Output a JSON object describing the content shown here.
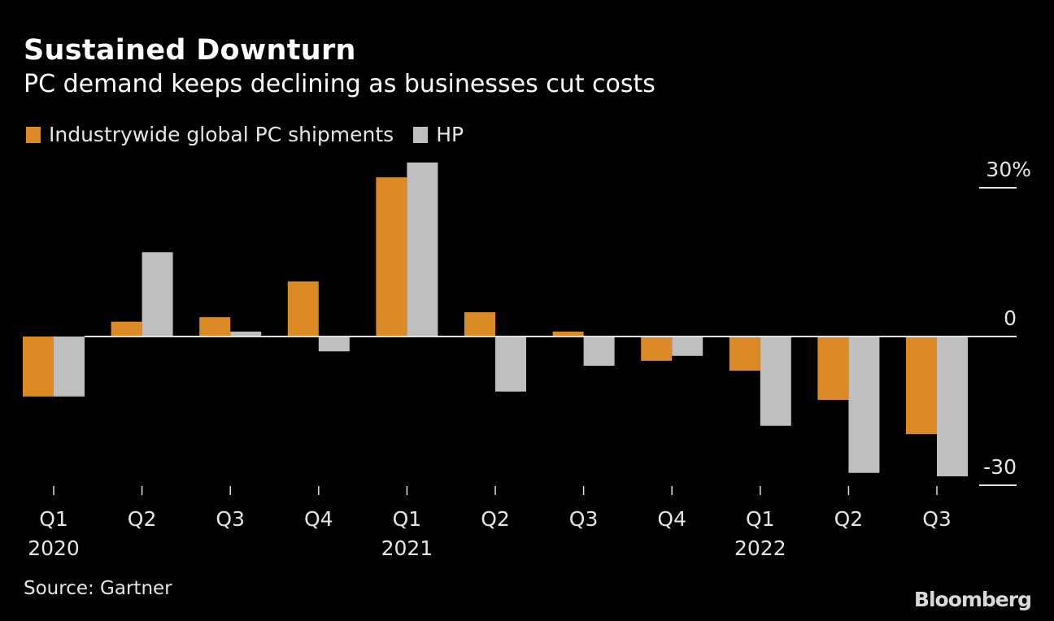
{
  "header": {
    "title": "Sustained Downturn",
    "subtitle": "PC demand keeps declining as businesses cut costs"
  },
  "legend": [
    {
      "label": "Industrywide global PC shipments",
      "color": "#dc8a25"
    },
    {
      "label": "HP",
      "color": "#bfbfbf"
    }
  ],
  "footer": {
    "source": "Source: Gartner",
    "brand": "Bloomberg"
  },
  "chart_data": {
    "type": "bar",
    "title": "Sustained Downturn",
    "subtitle": "PC demand keeps declining as businesses cut costs",
    "xlabel": "",
    "ylabel": "",
    "categories": [
      "Q1 2020",
      "Q2 2020",
      "Q3 2020",
      "Q4 2020",
      "Q1 2021",
      "Q2 2021",
      "Q3 2021",
      "Q4 2021",
      "Q1 2022",
      "Q2 2022",
      "Q3 2022"
    ],
    "x_tick_labels": [
      "Q1",
      "Q2",
      "Q3",
      "Q4",
      "Q1",
      "Q2",
      "Q3",
      "Q4",
      "Q1",
      "Q2",
      "Q3"
    ],
    "year_labels": [
      {
        "index": 0,
        "label": "2020"
      },
      {
        "index": 4,
        "label": "2021"
      },
      {
        "index": 8,
        "label": "2022"
      }
    ],
    "series": [
      {
        "name": "Industrywide global PC shipments",
        "color": "#dc8a25",
        "values": [
          -12.1,
          3.0,
          3.9,
          11.1,
          32.1,
          4.9,
          1.0,
          -4.9,
          -6.9,
          -12.8,
          -19.7
        ]
      },
      {
        "name": "HP",
        "color": "#bfbfbf",
        "values": [
          -12.1,
          17.0,
          1.0,
          -3.0,
          35.1,
          -11.1,
          -5.9,
          -3.9,
          -18.0,
          -27.5,
          -28.2
        ]
      }
    ],
    "y_ticks": [
      {
        "value": 30,
        "label": "30%"
      },
      {
        "value": 0,
        "label": "0"
      },
      {
        "value": -30,
        "label": "-30"
      }
    ],
    "ylim": [
      -30,
      30
    ],
    "y_axis_side": "right",
    "grid": false,
    "legend_position": "top-left"
  }
}
